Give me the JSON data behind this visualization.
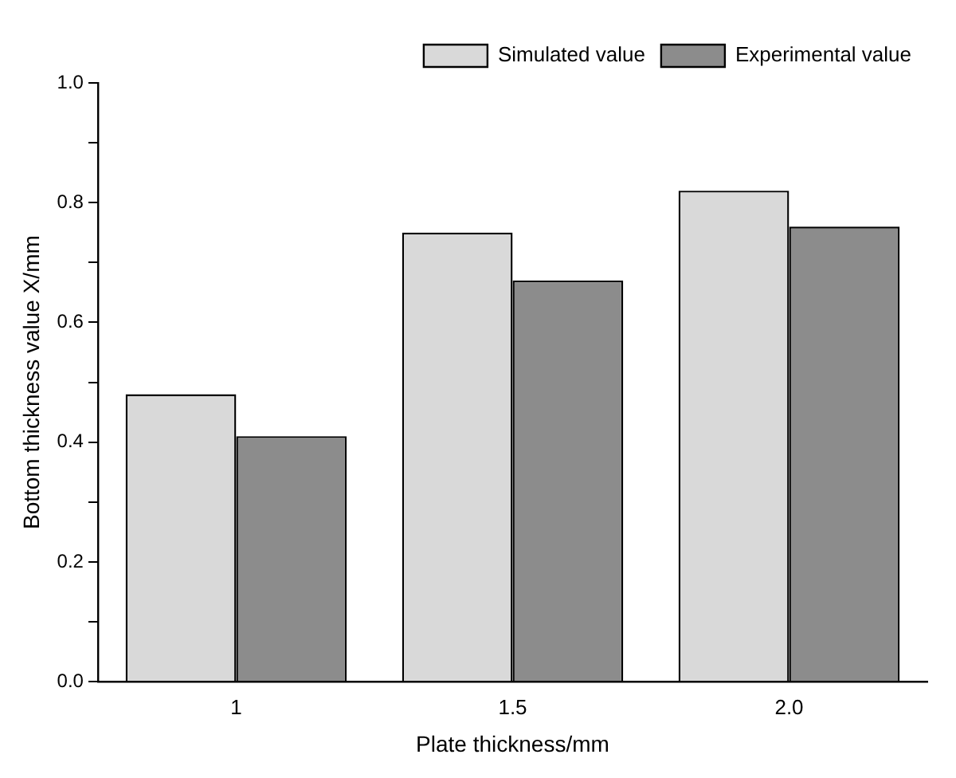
{
  "chart_data": {
    "type": "bar",
    "xlabel": "Plate thickness/mm",
    "ylabel": "Bottom thickness value X/mm",
    "categories": [
      "1",
      "1.5",
      "2.0"
    ],
    "series": [
      {
        "name": "Simulated value",
        "color": "#d9d9d9",
        "values": [
          0.48,
          0.75,
          0.82
        ]
      },
      {
        "name": "Experimental value",
        "color": "#8c8c8c",
        "values": [
          0.41,
          0.67,
          0.76
        ]
      }
    ],
    "ylim": [
      0,
      1
    ],
    "yticks": [
      {
        "value": 0,
        "label": "0.0"
      },
      {
        "value": 0.1,
        "label": null
      },
      0.2,
      {
        "value": 0.3,
        "label": null
      },
      0.4,
      {
        "value": 0.5,
        "label": null
      },
      0.6,
      {
        "value": 0.7,
        "label": null
      },
      0.8,
      {
        "value": 0.9,
        "label": null
      },
      {
        "value": 1,
        "label": "1.0"
      }
    ],
    "grid": false,
    "legend": "top right"
  }
}
